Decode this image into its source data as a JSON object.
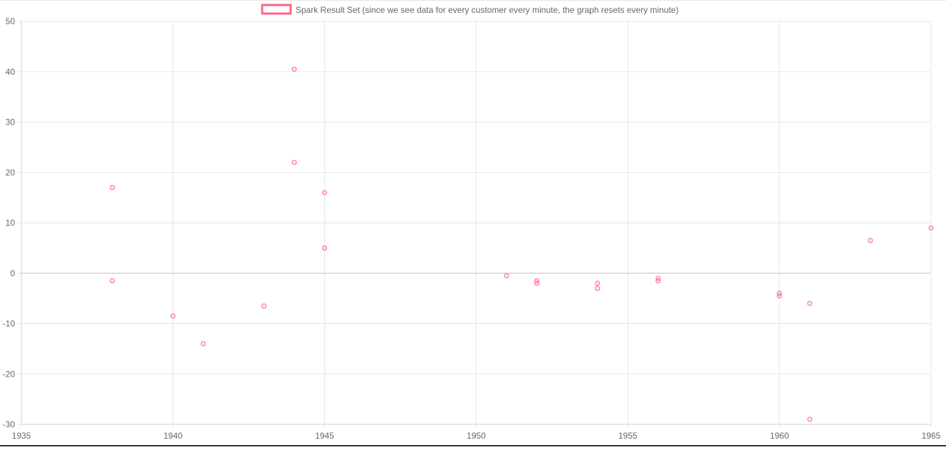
{
  "chart_data": {
    "type": "scatter",
    "title": "",
    "xlabel": "",
    "ylabel": "",
    "xlim": [
      1935,
      1965
    ],
    "ylim": [
      -30,
      50
    ],
    "x_ticks": [
      1935,
      1940,
      1945,
      1950,
      1955,
      1960,
      1965
    ],
    "y_ticks": [
      50,
      40,
      30,
      20,
      10,
      0,
      -10,
      -20,
      -30
    ],
    "grid": true,
    "legend_position": "top",
    "series": [
      {
        "name": "Spark Result Set (since we see data for every customer every minute, the graph resets every minute)",
        "color": "#ff6384",
        "points": [
          {
            "x": 1938,
            "y": 17
          },
          {
            "x": 1938,
            "y": -1.5
          },
          {
            "x": 1940,
            "y": -8.5
          },
          {
            "x": 1941,
            "y": -14
          },
          {
            "x": 1943,
            "y": -6.5
          },
          {
            "x": 1944,
            "y": 40.5
          },
          {
            "x": 1944,
            "y": 22
          },
          {
            "x": 1945,
            "y": 16
          },
          {
            "x": 1945,
            "y": 5
          },
          {
            "x": 1951,
            "y": -0.5
          },
          {
            "x": 1952,
            "y": -1.5
          },
          {
            "x": 1952,
            "y": -2
          },
          {
            "x": 1954,
            "y": -2
          },
          {
            "x": 1954,
            "y": -3
          },
          {
            "x": 1956,
            "y": -1
          },
          {
            "x": 1956,
            "y": -1.5
          },
          {
            "x": 1960,
            "y": -4
          },
          {
            "x": 1960,
            "y": -4.5
          },
          {
            "x": 1961,
            "y": -6
          },
          {
            "x": 1961,
            "y": -29
          },
          {
            "x": 1963,
            "y": 6.5
          },
          {
            "x": 1965,
            "y": 9
          }
        ]
      }
    ]
  }
}
